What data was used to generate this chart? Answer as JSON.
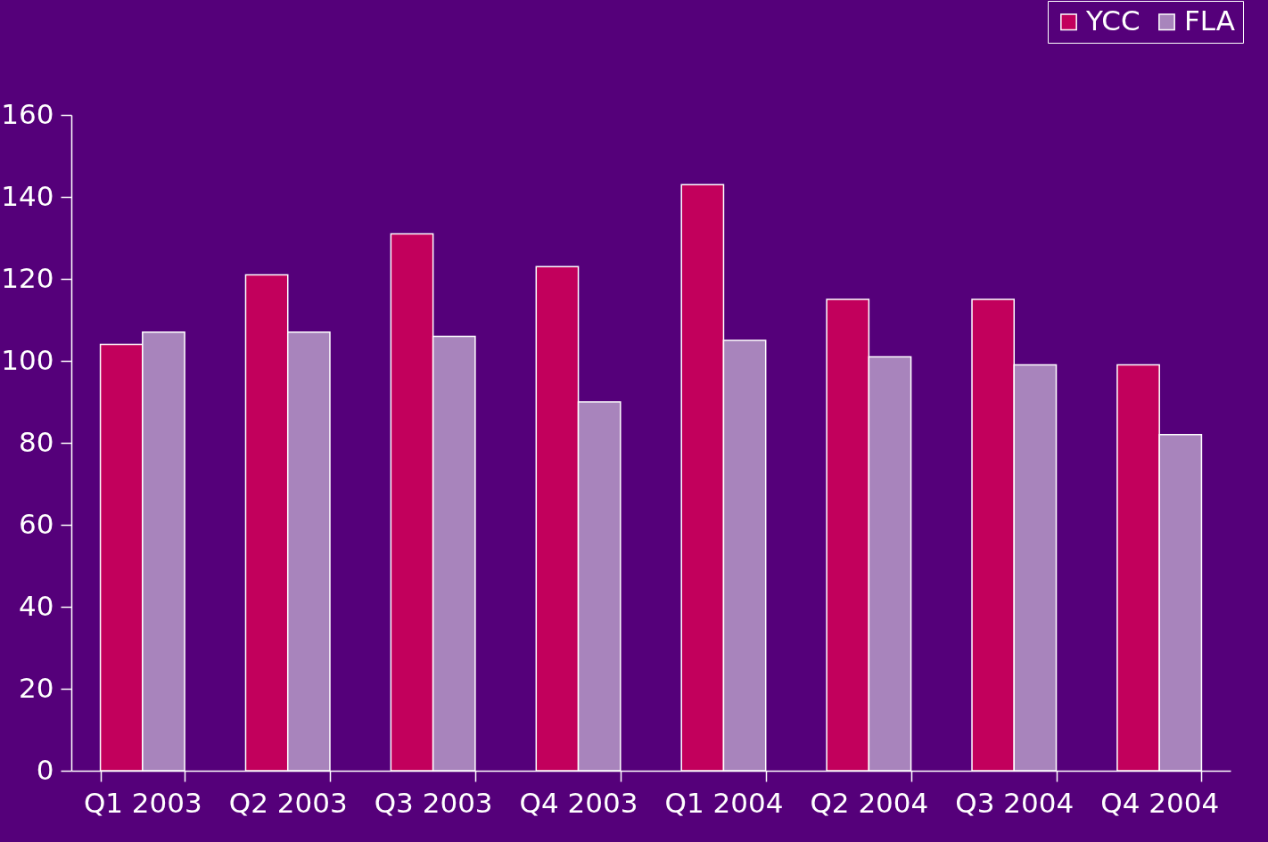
{
  "chart_data": {
    "type": "bar",
    "categories": [
      "Q1 2003",
      "Q2 2003",
      "Q3 2003",
      "Q4 2003",
      "Q1 2004",
      "Q2 2004",
      "Q3 2004",
      "Q4 2004"
    ],
    "series": [
      {
        "name": "YCC",
        "color": "#c2005c",
        "values": [
          104,
          121,
          131,
          123,
          143,
          115,
          115,
          99
        ]
      },
      {
        "name": "FLA",
        "color": "#a884bc",
        "values": [
          107,
          107,
          106,
          90,
          105,
          101,
          99,
          82
        ]
      }
    ],
    "ylim": [
      0,
      160
    ],
    "yticks": [
      0,
      20,
      40,
      60,
      80,
      100,
      120,
      140,
      160
    ],
    "grid": false,
    "legend": "top right"
  }
}
